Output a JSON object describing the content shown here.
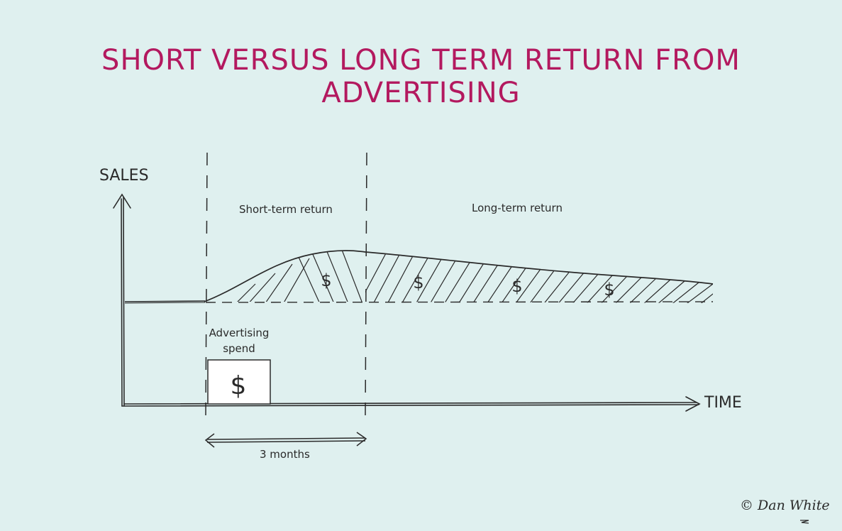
{
  "title": "SHORT VERSUS LONG TERM RETURN FROM ADVERTISING",
  "axes": {
    "y_label": "SALES",
    "x_label": "TIME"
  },
  "regions": {
    "short_term": "Short-term return",
    "long_term": "Long-term return"
  },
  "spend": {
    "label_line1": "Advertising",
    "label_line2": "spend",
    "symbol": "$"
  },
  "duration": "3 months",
  "return_symbol": "$",
  "credit": "© Dan White",
  "colors": {
    "background": "#dff0ef",
    "title": "#b3195f",
    "ink": "#2a2a2a"
  }
}
